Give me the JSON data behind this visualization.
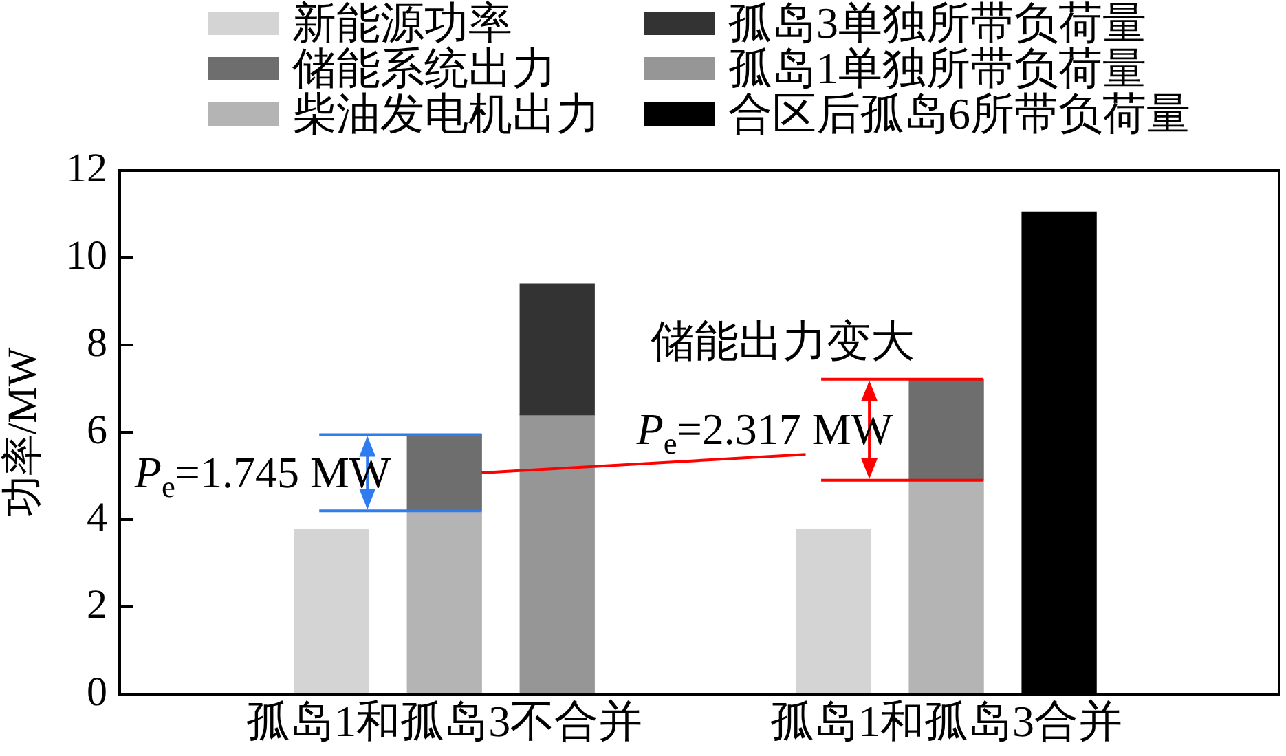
{
  "chart_data": {
    "type": "bar",
    "categories": [
      "孤岛1和孤岛3不合并",
      "孤岛1和孤岛3合并"
    ],
    "series": [
      {
        "name": "新能源功率",
        "color": "#d4d4d4",
        "values": [
          3.78,
          3.78
        ]
      },
      {
        "name": "储能系统出力",
        "color": "#6e6e6e",
        "values": [
          1.745,
          2.317
        ],
        "base": [
          4.2,
          4.9
        ]
      },
      {
        "name": "柴油发电机出力",
        "color": "#b4b4b4",
        "values": [
          4.2,
          4.9
        ]
      },
      {
        "name": "孤岛3单独所带负荷量",
        "color": "#333333",
        "values": [
          3.0,
          null
        ],
        "base": [
          6.4,
          null
        ]
      },
      {
        "name": "孤岛1单独所带负荷量",
        "color": "#969696",
        "values": [
          6.4,
          null
        ]
      },
      {
        "name": "合区后孤岛6所带负荷量",
        "color": "#000000",
        "values": [
          null,
          11.05
        ]
      }
    ],
    "ylabel": "功率/MW",
    "ylim": [
      0,
      12
    ],
    "yticks": [
      0,
      2,
      4,
      6,
      8,
      10,
      12
    ],
    "legend": "top",
    "annotations": [
      {
        "text": "P$_{e}$=1.745 MW",
        "x": "孤岛1和孤岛3不合并",
        "y": 5.945
      },
      {
        "text": "P$_{e}$=2.317 MW",
        "x": "孤岛1和孤岛3合并",
        "y": 7.217
      },
      {
        "text": "储能出力变大",
        "x": "孤岛1和孤岛3合并",
        "y": 7.217
      }
    ]
  }
}
